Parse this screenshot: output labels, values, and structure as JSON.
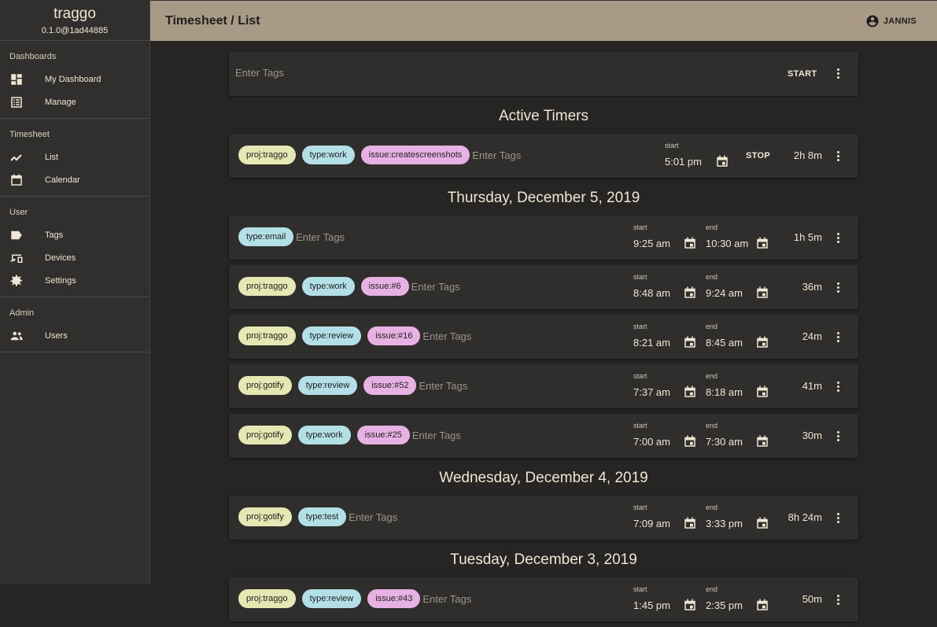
{
  "app": {
    "name": "traggo",
    "version": "0.1.0@1ad44885"
  },
  "sidebar": {
    "groups": [
      {
        "title": "Dashboards",
        "items": [
          {
            "label": "My Dashboard",
            "icon": "dashboard-icon"
          },
          {
            "label": "Manage",
            "icon": "list-alt-icon"
          }
        ]
      },
      {
        "title": "Timesheet",
        "items": [
          {
            "label": "List",
            "icon": "timeline-icon"
          },
          {
            "label": "Calendar",
            "icon": "calendar-icon"
          }
        ]
      },
      {
        "title": "User",
        "items": [
          {
            "label": "Tags",
            "icon": "label-icon"
          },
          {
            "label": "Devices",
            "icon": "devices-icon"
          },
          {
            "label": "Settings",
            "icon": "gear-icon"
          }
        ]
      },
      {
        "title": "Admin",
        "items": [
          {
            "label": "Users",
            "icon": "people-icon"
          }
        ]
      }
    ]
  },
  "header": {
    "title": "Timesheet / List",
    "user": "JANNIS"
  },
  "tag_colors": {
    "proj": "#e5e8b2",
    "type": "#b3e0e7",
    "issue": "#e7b2e3"
  },
  "new_timer": {
    "placeholder": "Enter Tags",
    "start_label": "START"
  },
  "labels": {
    "start": "start",
    "end": "end",
    "stop": "STOP",
    "tags_placeholder": "Enter Tags"
  },
  "active": {
    "title": "Active Timers",
    "tags": [
      "proj:traggo",
      "type:work",
      "issue:createscreenshots"
    ],
    "start": "5:01 pm",
    "duration": "2h 8m"
  },
  "days": [
    {
      "date": "Thursday, December 5, 2019",
      "entries": [
        {
          "tags": [
            "type:email"
          ],
          "start": "9:25 am",
          "end": "10:30 am",
          "duration": "1h 5m"
        },
        {
          "tags": [
            "proj:traggo",
            "type:work",
            "issue:#6"
          ],
          "start": "8:48 am",
          "end": "9:24 am",
          "duration": "36m"
        },
        {
          "tags": [
            "proj:traggo",
            "type:review",
            "issue:#16"
          ],
          "start": "8:21 am",
          "end": "8:45 am",
          "duration": "24m"
        },
        {
          "tags": [
            "proj:gotify",
            "type:review",
            "issue:#52"
          ],
          "start": "7:37 am",
          "end": "8:18 am",
          "duration": "41m"
        },
        {
          "tags": [
            "proj:gotify",
            "type:work",
            "issue:#25"
          ],
          "start": "7:00 am",
          "end": "7:30 am",
          "duration": "30m"
        }
      ]
    },
    {
      "date": "Wednesday, December 4, 2019",
      "entries": [
        {
          "tags": [
            "proj:gotify",
            "type:test"
          ],
          "start": "7:09 am",
          "end": "3:33 pm",
          "duration": "8h 24m"
        }
      ]
    },
    {
      "date": "Tuesday, December 3, 2019",
      "entries": [
        {
          "tags": [
            "proj:traggo",
            "type:review",
            "issue:#43"
          ],
          "start": "1:45 pm",
          "end": "2:35 pm",
          "duration": "50m"
        }
      ]
    }
  ]
}
